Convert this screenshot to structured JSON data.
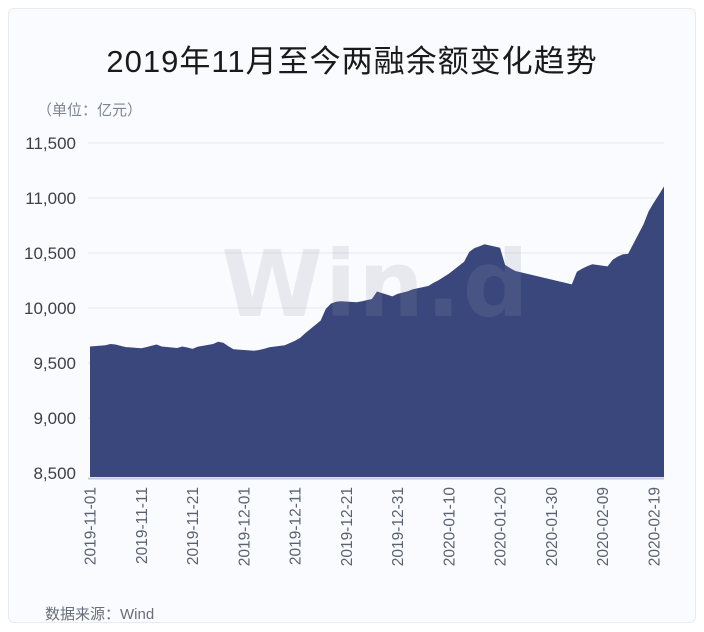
{
  "page": {
    "title": "2019年11月至今两融余额变化趋势",
    "unit_label": "（单位：亿元）",
    "source_label": "数据来源：Wind",
    "watermark": "Win.d"
  },
  "chart_data": {
    "type": "area",
    "title": "2019年11月至今两融余额变化趋势",
    "subtitle_unit": "亿元",
    "series_name": "两融余额",
    "x": [
      "2019-11-01",
      "2019-11-04",
      "2019-11-05",
      "2019-11-06",
      "2019-11-07",
      "2019-11-08",
      "2019-11-11",
      "2019-11-12",
      "2019-11-13",
      "2019-11-14",
      "2019-11-15",
      "2019-11-18",
      "2019-11-19",
      "2019-11-20",
      "2019-11-21",
      "2019-11-22",
      "2019-11-25",
      "2019-11-26",
      "2019-11-27",
      "2019-11-28",
      "2019-11-29",
      "2019-12-02",
      "2019-12-03",
      "2019-12-04",
      "2019-12-05",
      "2019-12-06",
      "2019-12-09",
      "2019-12-10",
      "2019-12-11",
      "2019-12-12",
      "2019-12-13",
      "2019-12-16",
      "2019-12-17",
      "2019-12-18",
      "2019-12-19",
      "2019-12-20",
      "2019-12-23",
      "2019-12-24",
      "2019-12-25",
      "2019-12-26",
      "2019-12-27",
      "2019-12-30",
      "2019-12-31",
      "2020-01-02",
      "2020-01-03",
      "2020-01-06",
      "2020-01-07",
      "2020-01-08",
      "2020-01-09",
      "2020-01-10",
      "2020-01-13",
      "2020-01-14",
      "2020-01-15",
      "2020-01-16",
      "2020-01-17",
      "2020-01-20",
      "2020-01-21",
      "2020-01-22",
      "2020-01-23",
      "2020-02-03",
      "2020-02-04",
      "2020-02-05",
      "2020-02-06",
      "2020-02-07",
      "2020-02-10",
      "2020-02-11",
      "2020-02-12",
      "2020-02-13",
      "2020-02-14",
      "2020-02-17",
      "2020-02-18",
      "2020-02-19",
      "2020-02-20",
      "2020-02-21"
    ],
    "values": [
      9650,
      9662,
      9673,
      9668,
      9655,
      9645,
      9634,
      9645,
      9657,
      9668,
      9650,
      9636,
      9650,
      9641,
      9628,
      9648,
      9673,
      9694,
      9684,
      9652,
      9625,
      9615,
      9612,
      9618,
      9630,
      9643,
      9662,
      9682,
      9702,
      9728,
      9772,
      9885,
      9992,
      10040,
      10056,
      10062,
      10052,
      10060,
      10072,
      10082,
      10150,
      10105,
      10128,
      10152,
      10170,
      10200,
      10228,
      10252,
      10282,
      10312,
      10420,
      10510,
      10545,
      10562,
      10580,
      10548,
      10392,
      10362,
      10336,
      10215,
      10330,
      10356,
      10380,
      10398,
      10378,
      10440,
      10468,
      10488,
      10492,
      10760,
      10878,
      10958,
      11030,
      11105
    ],
    "x_tick_labels": [
      "2019-11-01",
      "2019-11-11",
      "2019-11-21",
      "2019-12-01",
      "2019-12-11",
      "2019-12-21",
      "2019-12-31",
      "2020-01-10",
      "2020-01-20",
      "2020-01-30",
      "2020-02-09",
      "2020-02-19"
    ],
    "y_ticks": [
      8500,
      9000,
      9500,
      10000,
      10500,
      11000,
      11500
    ],
    "y_tick_labels": [
      "8,500",
      "9,000",
      "9,500",
      "10,000",
      "10,500",
      "11,000",
      "11,500"
    ],
    "ylim": [
      8500,
      11500
    ],
    "x_range": [
      "2019-11-01",
      "2020-02-21"
    ],
    "grid": true,
    "legend": "none",
    "fill_color": "#3a477d",
    "grid_color": "#e5e7ec",
    "axis_line_color": "#c7cad6",
    "background": "#fafbfe"
  }
}
